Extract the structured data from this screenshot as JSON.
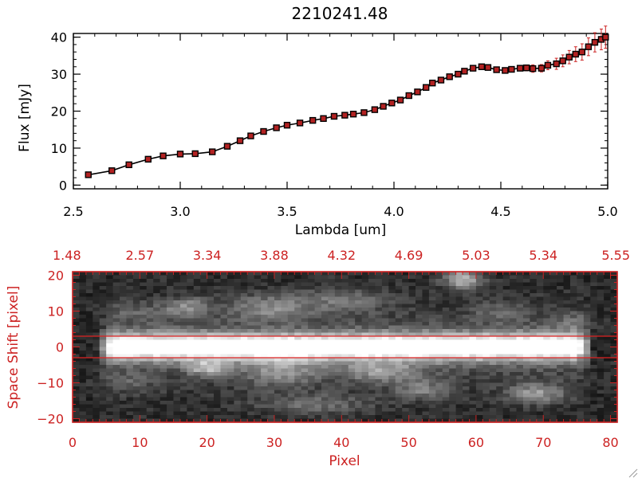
{
  "chart_data": [
    {
      "type": "line",
      "title": "2210241.48",
      "xlabel": "Lambda [um]",
      "ylabel": "Flux [mJy]",
      "xlim": [
        2.5,
        5.0
      ],
      "ylim": [
        -1,
        41
      ],
      "x_ticks": [
        2.5,
        3.0,
        3.5,
        4.0,
        4.5,
        5.0
      ],
      "x_tick_labels": [
        "2.5",
        "3.0",
        "3.5",
        "4.0",
        "4.5",
        "5.0"
      ],
      "y_ticks": [
        0,
        10,
        20,
        30,
        40
      ],
      "y_tick_labels": [
        "0",
        "10",
        "20",
        "30",
        "40"
      ],
      "grid": false,
      "colors": {
        "line": "#000000",
        "marker": "#b22222",
        "errorbar": "#cc2222"
      },
      "series": [
        {
          "x": [
            2.57,
            2.68,
            2.76,
            2.85,
            2.92,
            3.0,
            3.07,
            3.15,
            3.22,
            3.28,
            3.33,
            3.39,
            3.45,
            3.5,
            3.56,
            3.62,
            3.67,
            3.72,
            3.77,
            3.81,
            3.86,
            3.91,
            3.95,
            3.99,
            4.03,
            4.07,
            4.11,
            4.15,
            4.18,
            4.22,
            4.26,
            4.3,
            4.33,
            4.37,
            4.41,
            4.44,
            4.48,
            4.52,
            4.55,
            4.59,
            4.62,
            4.65,
            4.69,
            4.72,
            4.76,
            4.79,
            4.82,
            4.85,
            4.88,
            4.91,
            4.94,
            4.97,
            4.99
          ],
          "y": [
            2.8,
            3.9,
            5.5,
            7.0,
            7.9,
            8.4,
            8.5,
            9.0,
            10.5,
            12.0,
            13.3,
            14.5,
            15.5,
            16.2,
            16.8,
            17.5,
            18.0,
            18.6,
            18.9,
            19.2,
            19.6,
            20.4,
            21.3,
            22.2,
            23.0,
            24.2,
            25.2,
            26.4,
            27.6,
            28.4,
            29.3,
            30.0,
            30.8,
            31.6,
            32.0,
            31.8,
            31.2,
            31.0,
            31.3,
            31.6,
            31.7,
            31.5,
            31.6,
            32.4,
            32.8,
            33.6,
            34.6,
            35.4,
            36.0,
            37.4,
            38.6,
            39.4,
            40.0
          ],
          "yerr": [
            0.4,
            0.4,
            0.4,
            0.4,
            0.4,
            0.4,
            0.4,
            0.4,
            0.4,
            0.4,
            0.4,
            0.4,
            0.4,
            0.4,
            0.4,
            0.4,
            0.4,
            0.4,
            0.4,
            0.4,
            0.4,
            0.4,
            0.4,
            0.4,
            0.4,
            0.4,
            0.4,
            0.4,
            0.4,
            0.4,
            0.4,
            0.4,
            0.4,
            0.4,
            0.4,
            0.4,
            0.5,
            0.5,
            0.5,
            0.6,
            0.8,
            1.0,
            1.0,
            1.2,
            1.5,
            1.6,
            1.8,
            2.0,
            2.2,
            2.4,
            2.6,
            2.8,
            3.0
          ]
        }
      ]
    },
    {
      "type": "heatmap",
      "xlabel": "Pixel",
      "ylabel": "Space Shift [pixel]",
      "xlim": [
        0,
        81
      ],
      "ylim": [
        -21,
        21
      ],
      "x_ticks": [
        0,
        10,
        20,
        30,
        40,
        50,
        60,
        70,
        80
      ],
      "x_tick_labels": [
        "0",
        "10",
        "20",
        "30",
        "40",
        "50",
        "60",
        "70",
        "80"
      ],
      "y_ticks": [
        -20,
        -10,
        0,
        10,
        20
      ],
      "y_tick_labels": [
        "−20",
        "−10",
        "0",
        "10",
        "20"
      ],
      "top_tick_labels": [
        "1.48",
        "2.57",
        "3.34",
        "3.88",
        "4.32",
        "4.69",
        "5.03",
        "5.34",
        "5.55"
      ],
      "extraction_aperture": [
        -3,
        3
      ],
      "trace": {
        "x_start": 6,
        "x_end": 75,
        "y": 0,
        "half_width": 2.6
      },
      "colormap": "grayscale",
      "colors": {
        "axes": "#cc2222",
        "aperture": "#dd2222"
      },
      "blobs": [
        {
          "x": 58.0,
          "y": 19.0,
          "sx": 2.0,
          "sy": 2.0,
          "amp": 0.55
        },
        {
          "x": 17.0,
          "y": 11.0,
          "sx": 2.5,
          "sy": 2.0,
          "amp": 0.35
        },
        {
          "x": 29.0,
          "y": 11.0,
          "sx": 4.0,
          "sy": 2.5,
          "amp": 0.32
        },
        {
          "x": 40.0,
          "y": 13.0,
          "sx": 5.0,
          "sy": 2.5,
          "amp": 0.25
        },
        {
          "x": 20.0,
          "y": -6.0,
          "sx": 2.0,
          "sy": 1.5,
          "amp": 0.45
        },
        {
          "x": 31.0,
          "y": -7.0,
          "sx": 4.0,
          "sy": 3.0,
          "amp": 0.3
        },
        {
          "x": 46.0,
          "y": -7.0,
          "sx": 4.0,
          "sy": 2.0,
          "amp": 0.35
        },
        {
          "x": 52.0,
          "y": -12.0,
          "sx": 3.0,
          "sy": 2.0,
          "amp": 0.28
        },
        {
          "x": 69.0,
          "y": -13.0,
          "sx": 3.0,
          "sy": 2.0,
          "amp": 0.4
        },
        {
          "x": 36.0,
          "y": -16.0,
          "sx": 6.0,
          "sy": 2.0,
          "amp": 0.25
        },
        {
          "x": 75.0,
          "y": 7.0,
          "sx": 2.0,
          "sy": 2.0,
          "amp": 0.18
        },
        {
          "x": 64.0,
          "y": 10.0,
          "sx": 3.0,
          "sy": 2.0,
          "amp": 0.2
        },
        {
          "x": 9.0,
          "y": 10.0,
          "sx": 3.0,
          "sy": 2.0,
          "amp": 0.15
        },
        {
          "x": 8.0,
          "y": -10.0,
          "sx": 3.0,
          "sy": 2.0,
          "amp": 0.15
        }
      ]
    }
  ]
}
